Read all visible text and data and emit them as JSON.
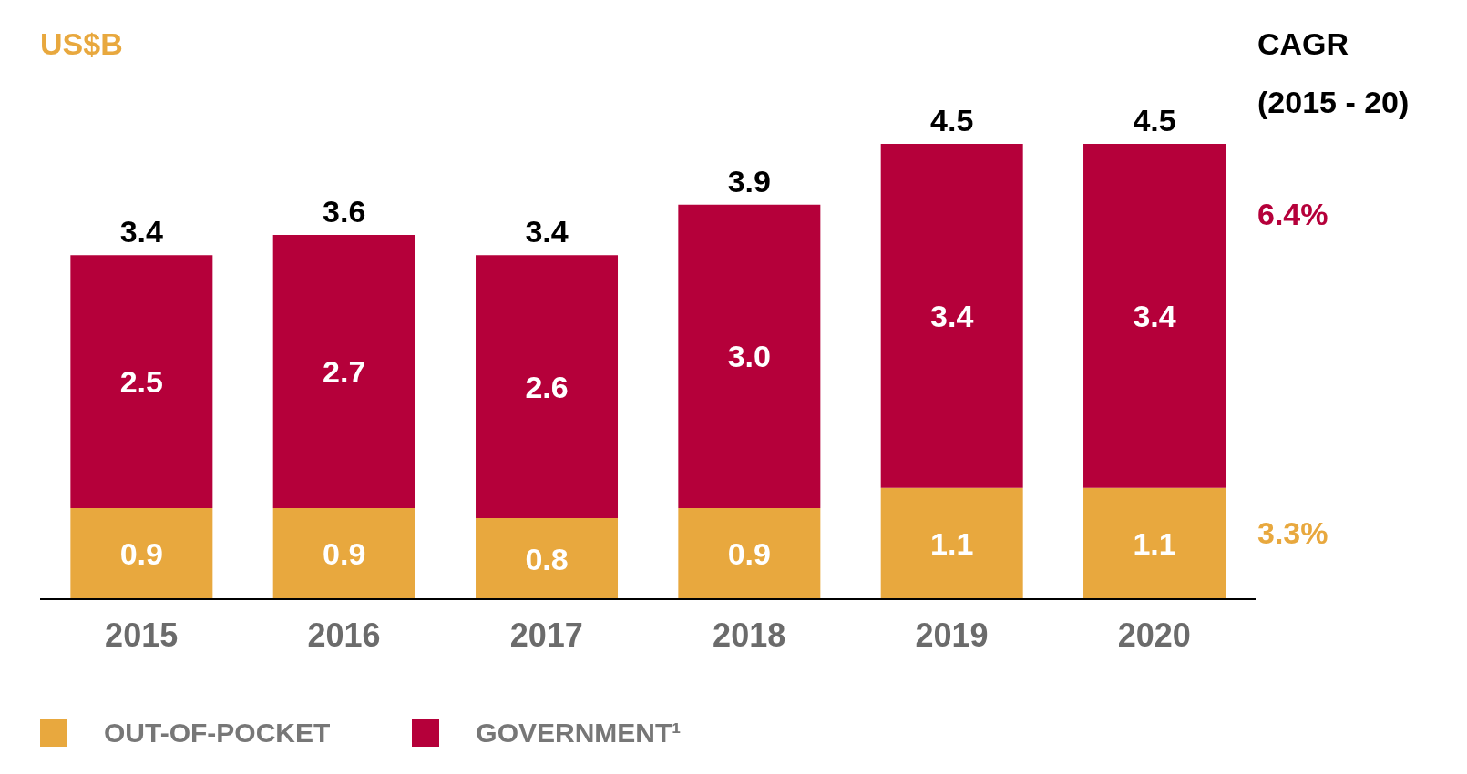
{
  "chart_data": {
    "type": "bar",
    "stacked": true,
    "categories": [
      "2015",
      "2016",
      "2017",
      "2018",
      "2019",
      "2020"
    ],
    "series": [
      {
        "name": "OUT-OF-POCKET",
        "color": "#e8a83e",
        "values": [
          0.9,
          0.9,
          0.8,
          0.9,
          1.1,
          1.1
        ],
        "value_labels": [
          "0.9",
          "0.9",
          "0.8",
          "0.9",
          "1.1",
          "1.1"
        ]
      },
      {
        "name": "GOVERNMENT¹",
        "color": "#b5003a",
        "values": [
          2.5,
          2.7,
          2.6,
          3.0,
          3.4,
          3.4
        ],
        "value_labels": [
          "2.5",
          "2.7",
          "2.6",
          "3.0",
          "3.4",
          "3.4"
        ]
      }
    ],
    "totals": [
      "3.4",
      "3.6",
      "3.4",
      "3.9",
      "4.5",
      "4.5"
    ],
    "annotations": [
      "US$B",
      "CAGR (2015 - 20)",
      "6.4%",
      "3.3%"
    ],
    "legend": "bottom left"
  }
}
